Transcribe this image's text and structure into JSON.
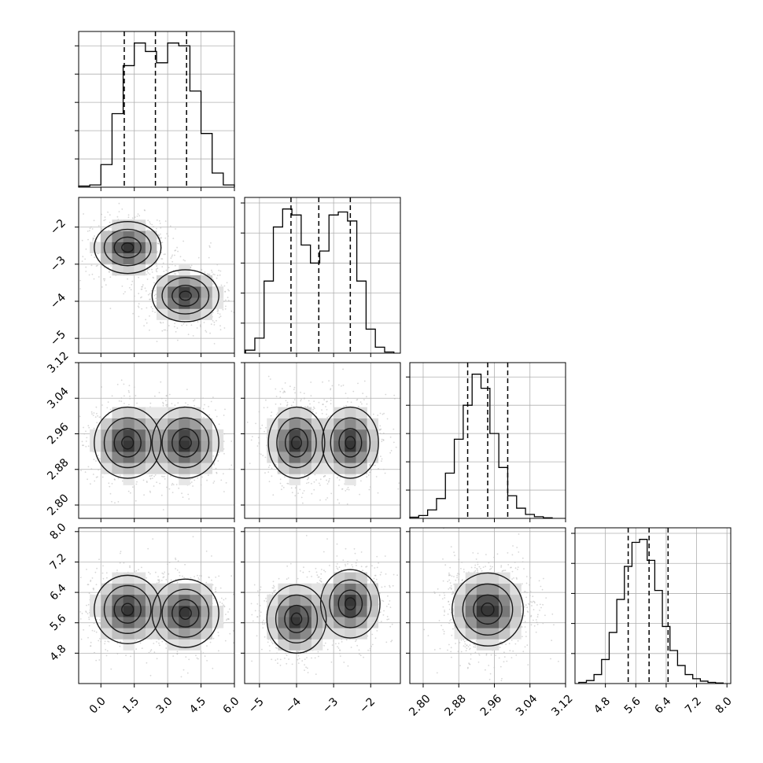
{
  "figure": {
    "type": "corner",
    "colors": {
      "frame": "#000000",
      "grid": "#b0b0b0",
      "hist": "#000000",
      "density_dark": "#1a1a1a",
      "points": "#bdbdbd"
    }
  },
  "chart_data": [
    {
      "type": "bar",
      "panel": "hist-param-1",
      "x": [
        -0.75,
        -0.25,
        0.25,
        0.75,
        1.25,
        1.75,
        2.25,
        2.75,
        3.25,
        3.75,
        4.25,
        4.75,
        5.25,
        5.75
      ],
      "values": [
        0.02,
        0.04,
        0.4,
        1.3,
        2.15,
        2.55,
        2.4,
        2.2,
        2.55,
        2.5,
        1.7,
        0.95,
        0.25,
        0.04
      ],
      "quantiles": [
        1.05,
        2.45,
        3.85
      ],
      "xlim": [
        -1.0,
        6.0
      ],
      "xticks": [
        "0.0",
        "1.5",
        "3.0",
        "4.5",
        "6.0"
      ],
      "xtick_values": [
        0.0,
        1.5,
        3.0,
        4.5,
        6.0
      ],
      "grid": true
    },
    {
      "type": "bar",
      "panel": "hist-param-2",
      "x": [
        -5.25,
        -5.0,
        -4.75,
        -4.5,
        -4.25,
        -4.0,
        -3.75,
        -3.5,
        -3.25,
        -3.0,
        -2.75,
        -2.5,
        -2.25,
        -2.0,
        -1.75,
        -1.5
      ],
      "values": [
        0.05,
        0.25,
        1.2,
        2.1,
        2.4,
        2.3,
        1.8,
        1.5,
        1.7,
        2.3,
        2.35,
        2.2,
        1.2,
        0.4,
        0.1,
        0.02
      ],
      "quantiles": [
        -4.15,
        -3.4,
        -2.55
      ],
      "xlim": [
        -5.4,
        -1.2
      ],
      "xticks": [
        "−5",
        "−4",
        "−3",
        "−2"
      ],
      "xtick_values": [
        -5,
        -4,
        -3,
        -2
      ],
      "grid": true
    },
    {
      "type": "bar",
      "panel": "hist-param-3",
      "x": [
        2.78,
        2.8,
        2.82,
        2.84,
        2.86,
        2.88,
        2.9,
        2.92,
        2.94,
        2.96,
        2.98,
        3.0,
        3.02,
        3.04,
        3.06,
        3.08
      ],
      "values": [
        0.02,
        0.05,
        0.15,
        0.35,
        0.8,
        1.4,
        2.0,
        2.55,
        2.3,
        1.5,
        0.9,
        0.4,
        0.18,
        0.07,
        0.03,
        0.01
      ],
      "quantiles": [
        2.9,
        2.945,
        2.99
      ],
      "xlim": [
        2.77,
        3.12
      ],
      "xticks": [
        "2.80",
        "2.88",
        "2.96",
        "3.04",
        "3.12"
      ],
      "xtick_values": [
        2.8,
        2.88,
        2.96,
        3.04,
        3.12
      ],
      "grid": true
    },
    {
      "type": "bar",
      "panel": "hist-param-4",
      "x": [
        4.2,
        4.4,
        4.6,
        4.8,
        5.0,
        5.2,
        5.4,
        5.6,
        5.8,
        6.0,
        6.2,
        6.4,
        6.6,
        6.8,
        7.0,
        7.2,
        7.4,
        7.6,
        7.8
      ],
      "values": [
        0.02,
        0.05,
        0.15,
        0.4,
        0.85,
        1.4,
        1.95,
        2.35,
        2.4,
        2.05,
        1.55,
        0.95,
        0.55,
        0.3,
        0.15,
        0.08,
        0.04,
        0.02,
        0.01
      ],
      "quantiles": [
        5.4,
        5.95,
        6.45
      ],
      "xlim": [
        4.0,
        8.1
      ],
      "xticks": [
        "4.8",
        "5.6",
        "6.4",
        "7.2",
        "8.0"
      ],
      "xtick_values": [
        4.8,
        5.6,
        6.4,
        7.2,
        8.0
      ],
      "grid": true
    },
    {
      "type": "scatter",
      "panel": "joint-param-1-vs-param-2",
      "modes": [
        {
          "x": 1.2,
          "y": -2.55,
          "sx": 0.75,
          "sy": 0.35
        },
        {
          "x": 3.8,
          "y": -3.85,
          "sx": 0.75,
          "sy": 0.35
        }
      ],
      "xlim": [
        -1.0,
        6.0
      ],
      "ylim": [
        -5.4,
        -1.2
      ],
      "yticks": [
        "−2",
        "−3",
        "−4",
        "−5"
      ],
      "ytick_values": [
        -2,
        -3,
        -4,
        -5
      ],
      "grid": true
    },
    {
      "type": "scatter",
      "panel": "joint-param-1-vs-param-3",
      "modes": [
        {
          "x": 1.2,
          "y": 2.94,
          "sx": 0.75,
          "sy": 0.04
        },
        {
          "x": 3.8,
          "y": 2.94,
          "sx": 0.75,
          "sy": 0.04
        }
      ],
      "xlim": [
        -1.0,
        6.0
      ],
      "ylim": [
        2.77,
        3.12
      ],
      "yticks": [
        "3.12",
        "3.04",
        "2.96",
        "2.88",
        "2.80"
      ],
      "ytick_values": [
        3.12,
        3.04,
        2.96,
        2.88,
        2.8
      ],
      "grid": true
    },
    {
      "type": "scatter",
      "panel": "joint-param-2-vs-param-3",
      "modes": [
        {
          "x": -4.0,
          "y": 2.94,
          "sx": 0.38,
          "sy": 0.04
        },
        {
          "x": -2.55,
          "y": 2.94,
          "sx": 0.38,
          "sy": 0.04
        }
      ],
      "xlim": [
        -5.4,
        -1.2
      ],
      "ylim": [
        2.77,
        3.12
      ],
      "grid": true
    },
    {
      "type": "scatter",
      "panel": "joint-param-1-vs-param-4",
      "modes": [
        {
          "x": 1.2,
          "y": 5.95,
          "sx": 0.75,
          "sy": 0.45
        },
        {
          "x": 3.8,
          "y": 5.85,
          "sx": 0.75,
          "sy": 0.45
        }
      ],
      "xlim": [
        -1.0,
        6.0
      ],
      "ylim": [
        4.0,
        8.1
      ],
      "yticks": [
        "8.0",
        "7.2",
        "6.4",
        "5.6",
        "4.8"
      ],
      "ytick_values": [
        8.0,
        7.2,
        6.4,
        5.6,
        4.8
      ],
      "grid": true
    },
    {
      "type": "scatter",
      "panel": "joint-param-2-vs-param-4",
      "modes": [
        {
          "x": -4.0,
          "y": 5.7,
          "sx": 0.4,
          "sy": 0.45
        },
        {
          "x": -2.55,
          "y": 6.1,
          "sx": 0.4,
          "sy": 0.45
        }
      ],
      "xlim": [
        -5.4,
        -1.2
      ],
      "ylim": [
        4.0,
        8.1
      ],
      "grid": true
    },
    {
      "type": "scatter",
      "panel": "joint-param-3-vs-param-4",
      "modes": [
        {
          "x": 2.945,
          "y": 5.95,
          "sx": 0.04,
          "sy": 0.48
        }
      ],
      "xlim": [
        2.77,
        3.12
      ],
      "ylim": [
        4.0,
        8.1
      ],
      "grid": true
    }
  ]
}
